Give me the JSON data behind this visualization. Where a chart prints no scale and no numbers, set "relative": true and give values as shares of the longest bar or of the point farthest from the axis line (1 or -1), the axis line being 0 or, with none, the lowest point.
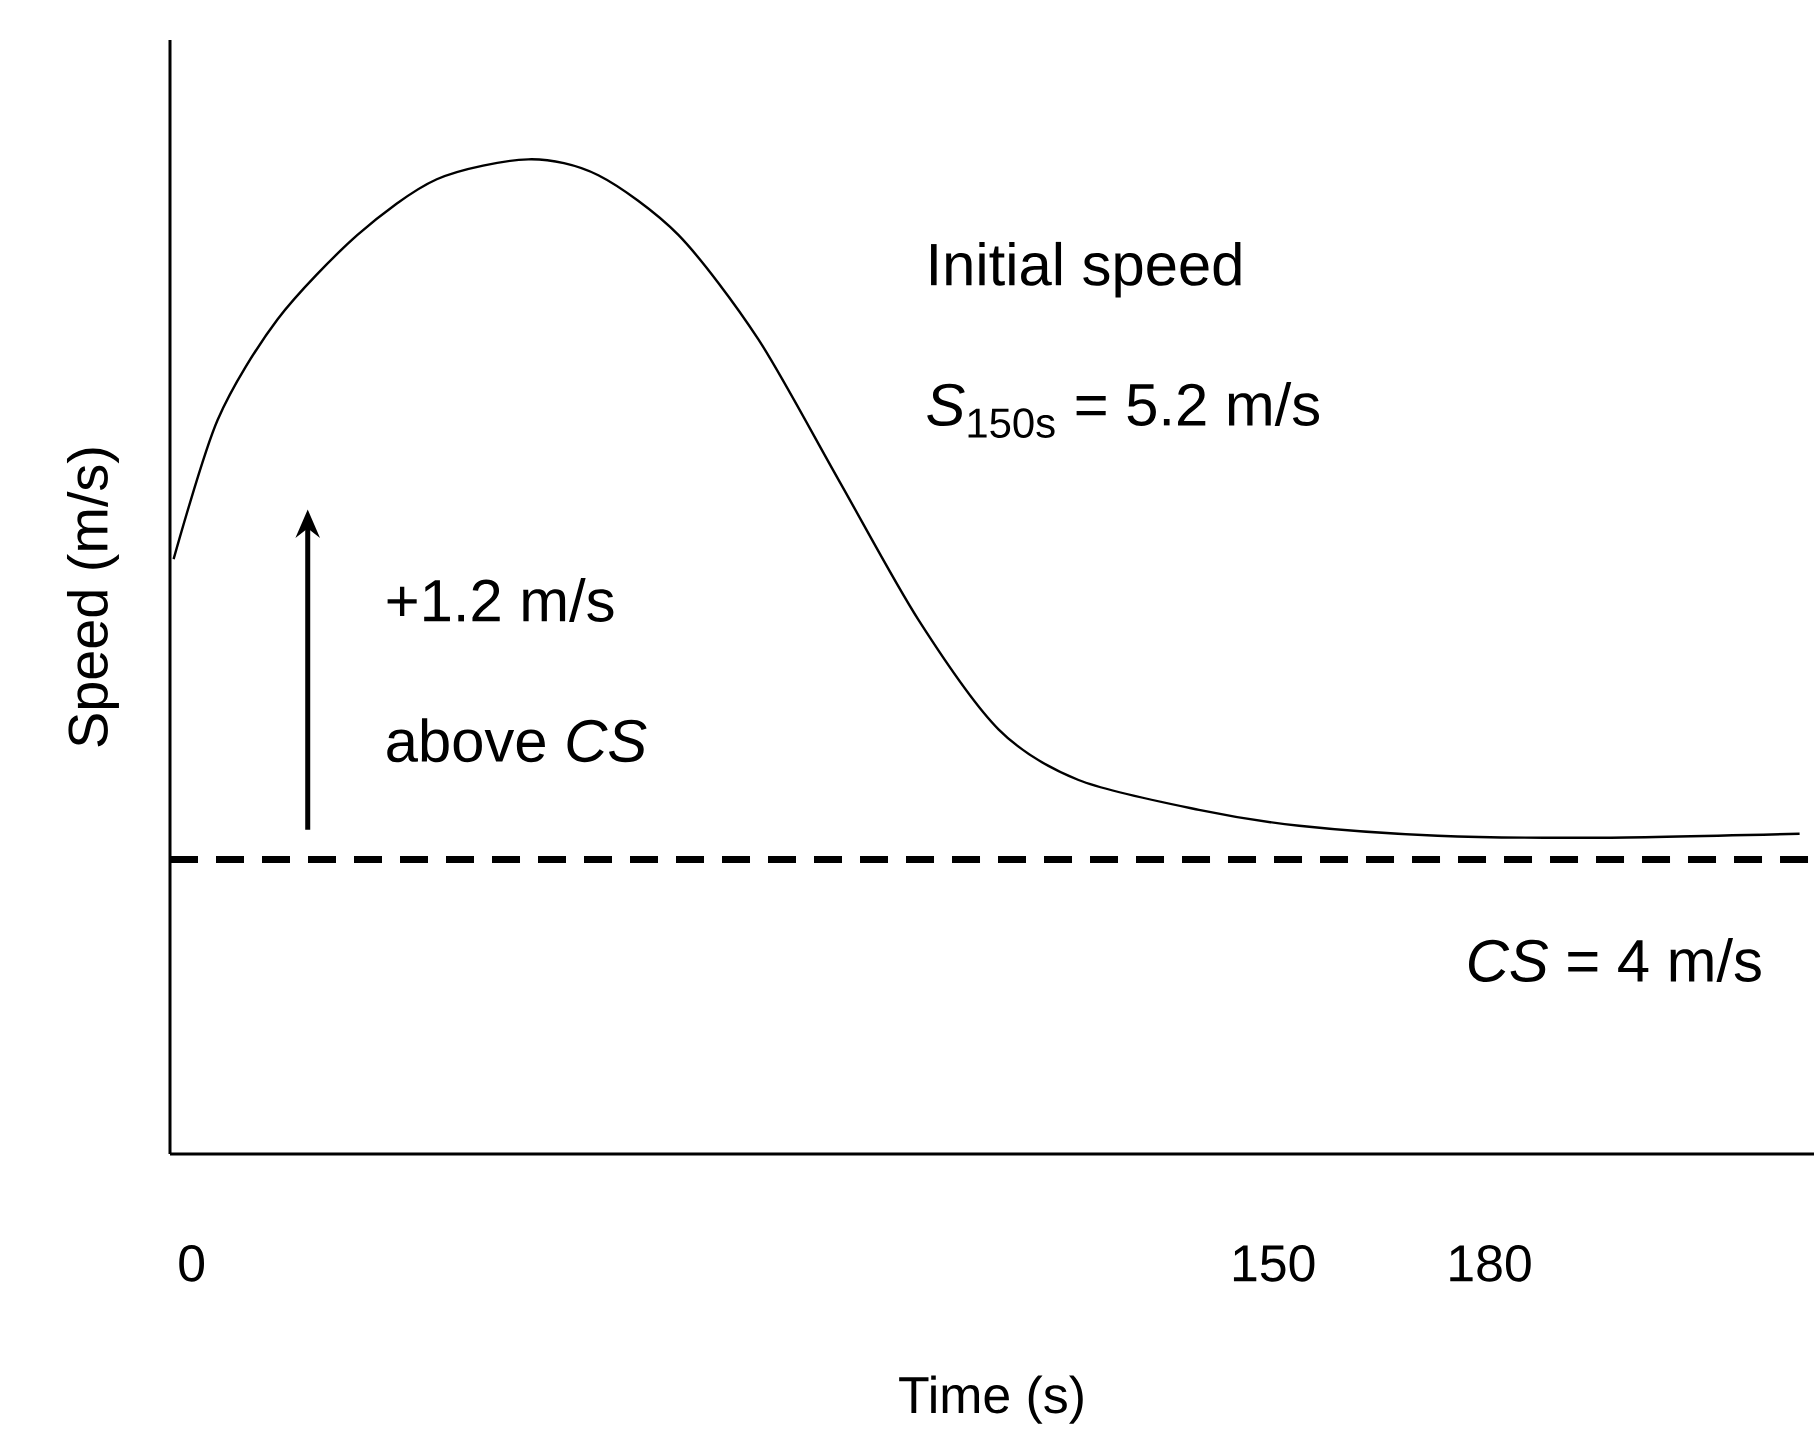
{
  "chart_data": {
    "type": "line",
    "relative": true,
    "xlabel": "Time (s)",
    "ylabel": "Speed (m/s)",
    "xlim": [
      -3,
      225
    ],
    "xticks": [
      0,
      150,
      180
    ],
    "series": [
      {
        "color": "#000000",
        "line_style": "solid",
        "x": [
          -2.5,
          3.6,
          11.9,
          23,
          34,
          46.7,
          56.4,
          67.5,
          78.6,
          89.7,
          100.8,
          111.9,
          123,
          139.7,
          153.6,
          172.8,
          195,
          223
        ],
        "values": [
          0.598,
          0.738,
          0.839,
          0.924,
          0.98,
          1.0,
          0.984,
          0.924,
          0.819,
          0.678,
          0.537,
          0.427,
          0.376,
          0.346,
          0.33,
          0.32,
          0.318,
          0.322
        ]
      }
    ],
    "ref_lines": [
      {
        "axis": "y",
        "value": 0.296,
        "color": "#000000",
        "line_style": "dashed"
      }
    ],
    "annotations": [
      "Initial speed",
      "*S*$_{150s}$ = 5.2 m/s",
      "+1.2 m/s",
      "above *CS*",
      "*CS* = 4 m/s"
    ],
    "grid": false,
    "marker": "none"
  }
}
